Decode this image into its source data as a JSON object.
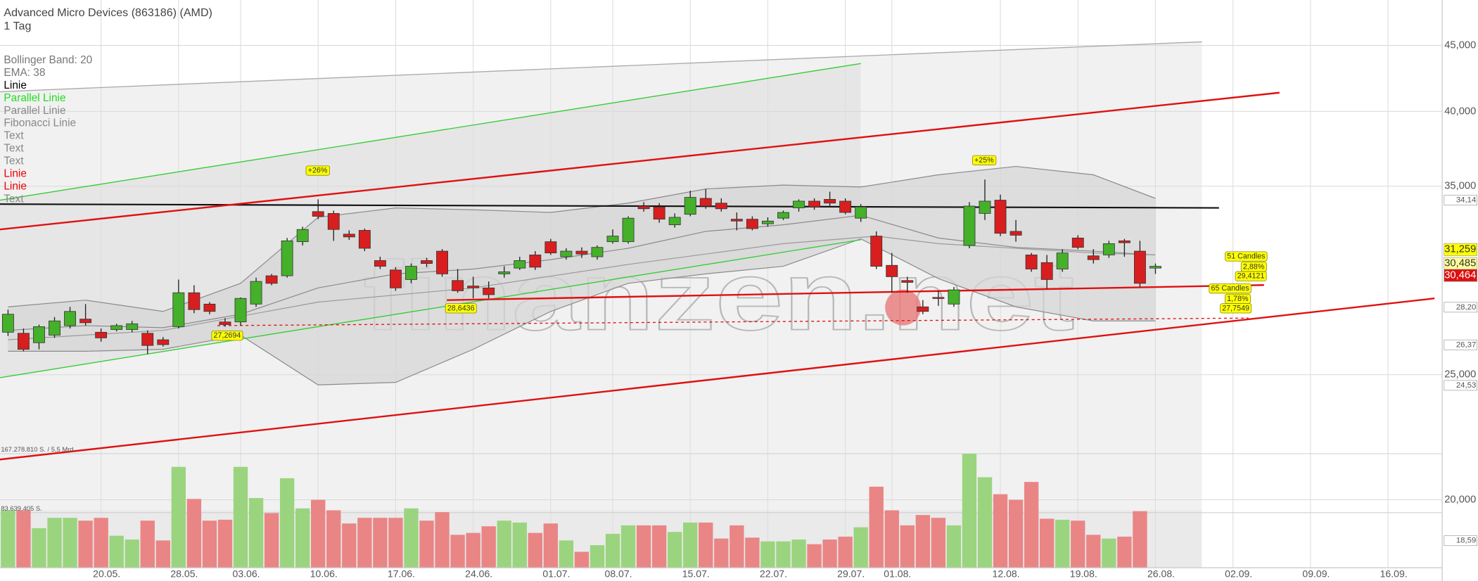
{
  "header": {
    "title": "Advanced Micro Devices (863186) (AMD)",
    "interval": "1 Tag"
  },
  "legend": [
    {
      "text": "Bollinger Band: 20",
      "color": "#777777"
    },
    {
      "text": "EMA: 38",
      "color": "#777777"
    },
    {
      "text": "Linie",
      "color": "#000000"
    },
    {
      "text": "Parallel Linie",
      "color": "#22dd22"
    },
    {
      "text": "Parallel Linie",
      "color": "#888888"
    },
    {
      "text": "Fibonacci Linie",
      "color": "#888888"
    },
    {
      "text": "Text",
      "color": "#888888"
    },
    {
      "text": "Text",
      "color": "#888888"
    },
    {
      "text": "Text",
      "color": "#888888"
    },
    {
      "text": "Linie",
      "color": "#ee0000"
    },
    {
      "text": "Linie",
      "color": "#ee0000"
    },
    {
      "text": "Text",
      "color": "#888888"
    }
  ],
  "watermark": "finanzen.net",
  "chart_data": {
    "type": "candlestick",
    "log_scale": true,
    "grid": true,
    "up_color": "#45b02a",
    "down_color": "#d81e1e",
    "ylim": [
      17300,
      48800
    ],
    "yticks": [
      {
        "value": 20000,
        "label": "20,000"
      },
      {
        "value": 25000,
        "label": "25,000"
      },
      {
        "value": 35000,
        "label": "35,000"
      },
      {
        "value": 40000,
        "label": "40,000"
      },
      {
        "value": 45000,
        "label": "45,000"
      }
    ],
    "categories": [
      null,
      null,
      null,
      null,
      null,
      null,
      "20.05.",
      null,
      null,
      null,
      null,
      "28.05.",
      null,
      null,
      null,
      "03.06.",
      null,
      null,
      null,
      null,
      "10.06.",
      null,
      null,
      null,
      null,
      "17.06.",
      null,
      null,
      null,
      null,
      "24.06.",
      null,
      null,
      null,
      null,
      "01.07.",
      null,
      null,
      null,
      "08.07.",
      null,
      null,
      null,
      null,
      "15.07.",
      null,
      null,
      null,
      null,
      "22.07.",
      null,
      null,
      null,
      null,
      "29.07.",
      null,
      null,
      "01.08.",
      null,
      null,
      null,
      null,
      null,
      null,
      "12.08.",
      null,
      null,
      null,
      null,
      "19.08.",
      null,
      null,
      null,
      null,
      "26.08.",
      null,
      null,
      null,
      null,
      "02.09.",
      null,
      null,
      null,
      null,
      "09.09.",
      null,
      null,
      null,
      null,
      "16.09."
    ],
    "open": [
      26970,
      26920,
      26470,
      26830,
      27290,
      27610,
      26970,
      27100,
      27100,
      26920,
      26610,
      27240,
      28940,
      28360,
      27470,
      27470,
      28360,
      29830,
      29830,
      31700,
      33450,
      33340,
      32130,
      32350,
      30650,
      30140,
      29630,
      30650,
      31170,
      29580,
      29290,
      29190,
      29930,
      30240,
      30960,
      31700,
      30860,
      31170,
      30860,
      31700,
      31700,
      33780,
      33730,
      32670,
      33290,
      34250,
      33960,
      33000,
      33000,
      32730,
      33060,
      33670,
      34080,
      34190,
      34080,
      33060,
      32020,
      30390,
      29580,
      28220,
      28700,
      28360,
      31490,
      33340,
      34140,
      32290,
      30960,
      30540,
      30190,
      31910,
      30910,
      30960,
      31750,
      31170,
      30240,
      null,
      null,
      null,
      null,
      null,
      null,
      null,
      null,
      null,
      null,
      null,
      null,
      null,
      null,
      null
    ],
    "high": [
      28080,
      27150,
      27340,
      27710,
      28220,
      28360,
      27150,
      27380,
      27520,
      27060,
      26740,
      29630,
      29330,
      28460,
      27660,
      28700,
      29730,
      29930,
      31910,
      32560,
      34190,
      33510,
      32350,
      32450,
      30860,
      30290,
      30490,
      30800,
      31280,
      30190,
      29780,
      29530,
      30340,
      30860,
      31170,
      31860,
      31330,
      31380,
      31490,
      32400,
      33170,
      34020,
      33960,
      33340,
      34720,
      34830,
      34250,
      33400,
      33170,
      33110,
      33510,
      34190,
      34250,
      34660,
      34250,
      33900,
      32290,
      31070,
      29780,
      28560,
      29040,
      29240,
      34020,
      35420,
      34480,
      32950,
      31070,
      30960,
      31280,
      32070,
      31280,
      31750,
      31860,
      31750,
      30490,
      null,
      null,
      null,
      null,
      null,
      null,
      null,
      null,
      null,
      null,
      null,
      null,
      null,
      null,
      null
    ],
    "low": [
      26790,
      26070,
      26160,
      26700,
      27150,
      27290,
      26520,
      27010,
      26970,
      25940,
      26290,
      27150,
      27900,
      27850,
      27240,
      27290,
      28220,
      29330,
      29730,
      31490,
      33000,
      31750,
      31800,
      31170,
      30190,
      29040,
      29430,
      30290,
      29780,
      28940,
      28650,
      28650,
      29730,
      30140,
      30140,
      30960,
      30700,
      30800,
      30700,
      31590,
      31590,
      33450,
      32790,
      32510,
      33170,
      33620,
      33450,
      32350,
      32350,
      32560,
      32950,
      33450,
      33560,
      33730,
      33290,
      32840,
      30190,
      28940,
      28940,
      27850,
      28270,
      28220,
      31330,
      32950,
      32020,
      31700,
      30040,
      29140,
      30040,
      31280,
      30490,
      30800,
      30860,
      29240,
      29930,
      null,
      null,
      null,
      null,
      null,
      null,
      null,
      null,
      null,
      null,
      null,
      null,
      null,
      null,
      null
    ],
    "close": [
      27850,
      26160,
      27240,
      27520,
      27990,
      27430,
      26700,
      27290,
      27380,
      26340,
      26380,
      28940,
      28080,
      27990,
      27340,
      28650,
      29530,
      29430,
      31750,
      32400,
      33170,
      32400,
      31970,
      31330,
      30340,
      29190,
      30340,
      30490,
      29930,
      29040,
      29190,
      28840,
      30040,
      30650,
      30290,
      31070,
      31170,
      31010,
      31380,
      32020,
      33060,
      33620,
      33000,
      33110,
      34310,
      33780,
      33620,
      32890,
      32450,
      32890,
      33400,
      34080,
      33730,
      33960,
      33400,
      33730,
      30340,
      29780,
      29480,
      27990,
      28650,
      29090,
      33780,
      34080,
      32180,
      32070,
      30190,
      29630,
      31070,
      31380,
      30700,
      31590,
      31640,
      29430,
      30340,
      null,
      null,
      null,
      null,
      null,
      null,
      null,
      null,
      null,
      null,
      null,
      null,
      null,
      null,
      null
    ],
    "volume": {
      "values": [
        81600000,
        81600000,
        56200000,
        70900000,
        70900000,
        66900000,
        70900000,
        45500000,
        40100000,
        66900000,
        38800000,
        143200000,
        97700000,
        66900000,
        68200000,
        143200000,
        99000000,
        77600000,
        127100000,
        84300000,
        96400000,
        81600000,
        62900000,
        70900000,
        70900000,
        70900000,
        84300000,
        66900000,
        79000000,
        46800000,
        49500000,
        58900000,
        66900000,
        64200000,
        49500000,
        62900000,
        38800000,
        22700000,
        32100000,
        48200000,
        60200000,
        60200000,
        60200000,
        50900000,
        64200000,
        64200000,
        41500000,
        60200000,
        42800000,
        37500000,
        37500000,
        40100000,
        33500000,
        40100000,
        44200000,
        57500000,
        115100000,
        81600000,
        60200000,
        74900000,
        70900000,
        60200000,
        161900000,
        128500000,
        104400000,
        96400000,
        121800000,
        69600000,
        68200000,
        66900000,
        46800000,
        41500000,
        44200000,
        80300000,
        null,
        null,
        null,
        null,
        null,
        null,
        null,
        null,
        null,
        null,
        null,
        null,
        null,
        null,
        null,
        null
      ],
      "ylim": [
        0,
        167278810
      ],
      "yticks": [
        {
          "value": 167278810,
          "label": "167.278.810 S. / 5,5 Mrd."
        },
        {
          "value": 83639405,
          "label": "83.639.405 S."
        }
      ],
      "up_color": "#9bd47f",
      "down_color": "#ea8585"
    },
    "bollinger": {
      "x": [
        0,
        5,
        10,
        15,
        20,
        25,
        30,
        35,
        40,
        45,
        50,
        55,
        60,
        65,
        70,
        74
      ],
      "upper": [
        28220,
        28560,
        27990,
        29430,
        33110,
        33670,
        33560,
        33400,
        33960,
        34830,
        35070,
        34950,
        35720,
        36260,
        35720,
        34250
      ],
      "middle": [
        27060,
        27290,
        27190,
        27850,
        29190,
        29930,
        30190,
        30700,
        31330,
        32290,
        32670,
        33230,
        31910,
        31380,
        31170,
        30960
      ],
      "lower": [
        26070,
        26070,
        26160,
        26830,
        24550,
        24660,
        26160,
        27990,
        29430,
        29930,
        30340,
        31860,
        29680,
        28220,
        27520,
        27520
      ],
      "color": "#8a8a8a",
      "fill": "#d6d6d6"
    },
    "ema": {
      "x": [
        0,
        10,
        20,
        30,
        40,
        50,
        56,
        60,
        70,
        74
      ],
      "values": [
        26610,
        27060,
        28460,
        29190,
        30440,
        31590,
        32020,
        31590,
        31070,
        30960
      ],
      "color": "#9a9a9a"
    },
    "lines": [
      {
        "x": [
          -0.52,
          77.0
        ],
        "values": [
          41430,
          45290
        ],
        "color": "#aaaaaa",
        "width": 1,
        "dashed": false
      },
      {
        "x": [
          -0.52,
          55.0
        ],
        "values": [
          34140,
          43570
        ],
        "color": "#33cc33",
        "width": 1,
        "dashed": false
      },
      {
        "x": [
          -0.52,
          55.0
        ],
        "values": [
          24870,
          31810
        ],
        "color": "#33cc33",
        "width": 1,
        "dashed": false
      },
      {
        "x": [
          -0.52,
          78.1
        ],
        "values": [
          33900,
          33670
        ],
        "color": "#111111",
        "width": 1.6,
        "dashed": false
      },
      {
        "x": [
          -0.52,
          82.0
        ],
        "values": [
          32400,
          41360
        ],
        "color": "#e01010",
        "width": 1.8,
        "dashed": false
      },
      {
        "x": [
          -0.52,
          92.0
        ],
        "values": [
          21490,
          28650
        ],
        "color": "#e01010",
        "width": 1.8,
        "dashed": false
      },
      {
        "x": [
          28.3,
          81.0
        ],
        "values": [
          28560,
          29340
        ],
        "color": "#e01010",
        "width": 1.8,
        "dashed": false
      },
      {
        "x": [
          13.5,
          80.0
        ],
        "values": [
          27290,
          27660
        ],
        "color": "#e01010",
        "width": 1,
        "dashed": true
      }
    ],
    "price_labels": [
      {
        "value": 34140,
        "label": "34,14",
        "bg": "#ffffff",
        "fg": "#555555",
        "size": 8.5
      },
      {
        "value": 31259,
        "label": "31,259",
        "bg": "#ffff00",
        "fg": "#333333",
        "size": 11
      },
      {
        "value": 30485,
        "label": "30,485",
        "bg": "#ffff99",
        "fg": "#333333",
        "size": 11
      },
      {
        "value": 30464,
        "label": "30,464",
        "bg": "#dd1111",
        "fg": "#ffffff",
        "size": 11
      },
      {
        "value": 28200,
        "label": "28,20",
        "bg": "#ffffff",
        "fg": "#555555",
        "size": 8.5
      },
      {
        "value": 26370,
        "label": "26,37",
        "bg": "#ffffff",
        "fg": "#555555",
        "size": 8.5
      },
      {
        "value": 24530,
        "label": "24,53",
        "bg": "#ffffff",
        "fg": "#555555",
        "size": 8.5
      },
      {
        "value": 18590,
        "label": "18,59",
        "bg": "#ffffff",
        "fg": "#555555",
        "size": 8.5
      }
    ],
    "annotations": [
      "+26%",
      "27,2694",
      "28,6436",
      "+25%",
      "51 Candles",
      "2,88%",
      "29,4121",
      "65 Candles",
      "1,78%",
      "27,7549"
    ]
  }
}
